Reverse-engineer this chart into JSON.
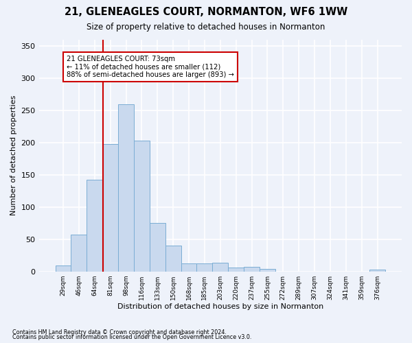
{
  "title": "21, GLENEAGLES COURT, NORMANTON, WF6 1WW",
  "subtitle": "Size of property relative to detached houses in Normanton",
  "xlabel": "Distribution of detached houses by size in Normanton",
  "ylabel": "Number of detached properties",
  "bar_color": "#c9d9ee",
  "bar_edge_color": "#7aadd4",
  "categories": [
    "29sqm",
    "46sqm",
    "64sqm",
    "81sqm",
    "98sqm",
    "116sqm",
    "133sqm",
    "150sqm",
    "168sqm",
    "185sqm",
    "203sqm",
    "220sqm",
    "237sqm",
    "255sqm",
    "272sqm",
    "289sqm",
    "307sqm",
    "324sqm",
    "341sqm",
    "359sqm",
    "376sqm"
  ],
  "values": [
    9,
    57,
    142,
    198,
    259,
    203,
    75,
    40,
    12,
    12,
    14,
    6,
    7,
    4,
    0,
    0,
    0,
    0,
    0,
    0,
    3
  ],
  "ylim": [
    0,
    360
  ],
  "yticks": [
    0,
    50,
    100,
    150,
    200,
    250,
    300,
    350
  ],
  "vline_color": "#cc0000",
  "annotation_text": "21 GLENEAGLES COURT: 73sqm\n← 11% of detached houses are smaller (112)\n88% of semi-detached houses are larger (893) →",
  "annotation_box_color": "#ffffff",
  "annotation_box_edge": "#cc0000",
  "footnote1": "Contains HM Land Registry data © Crown copyright and database right 2024.",
  "footnote2": "Contains public sector information licensed under the Open Government Licence v3.0.",
  "background_color": "#eef2fa",
  "grid_color": "#ffffff"
}
